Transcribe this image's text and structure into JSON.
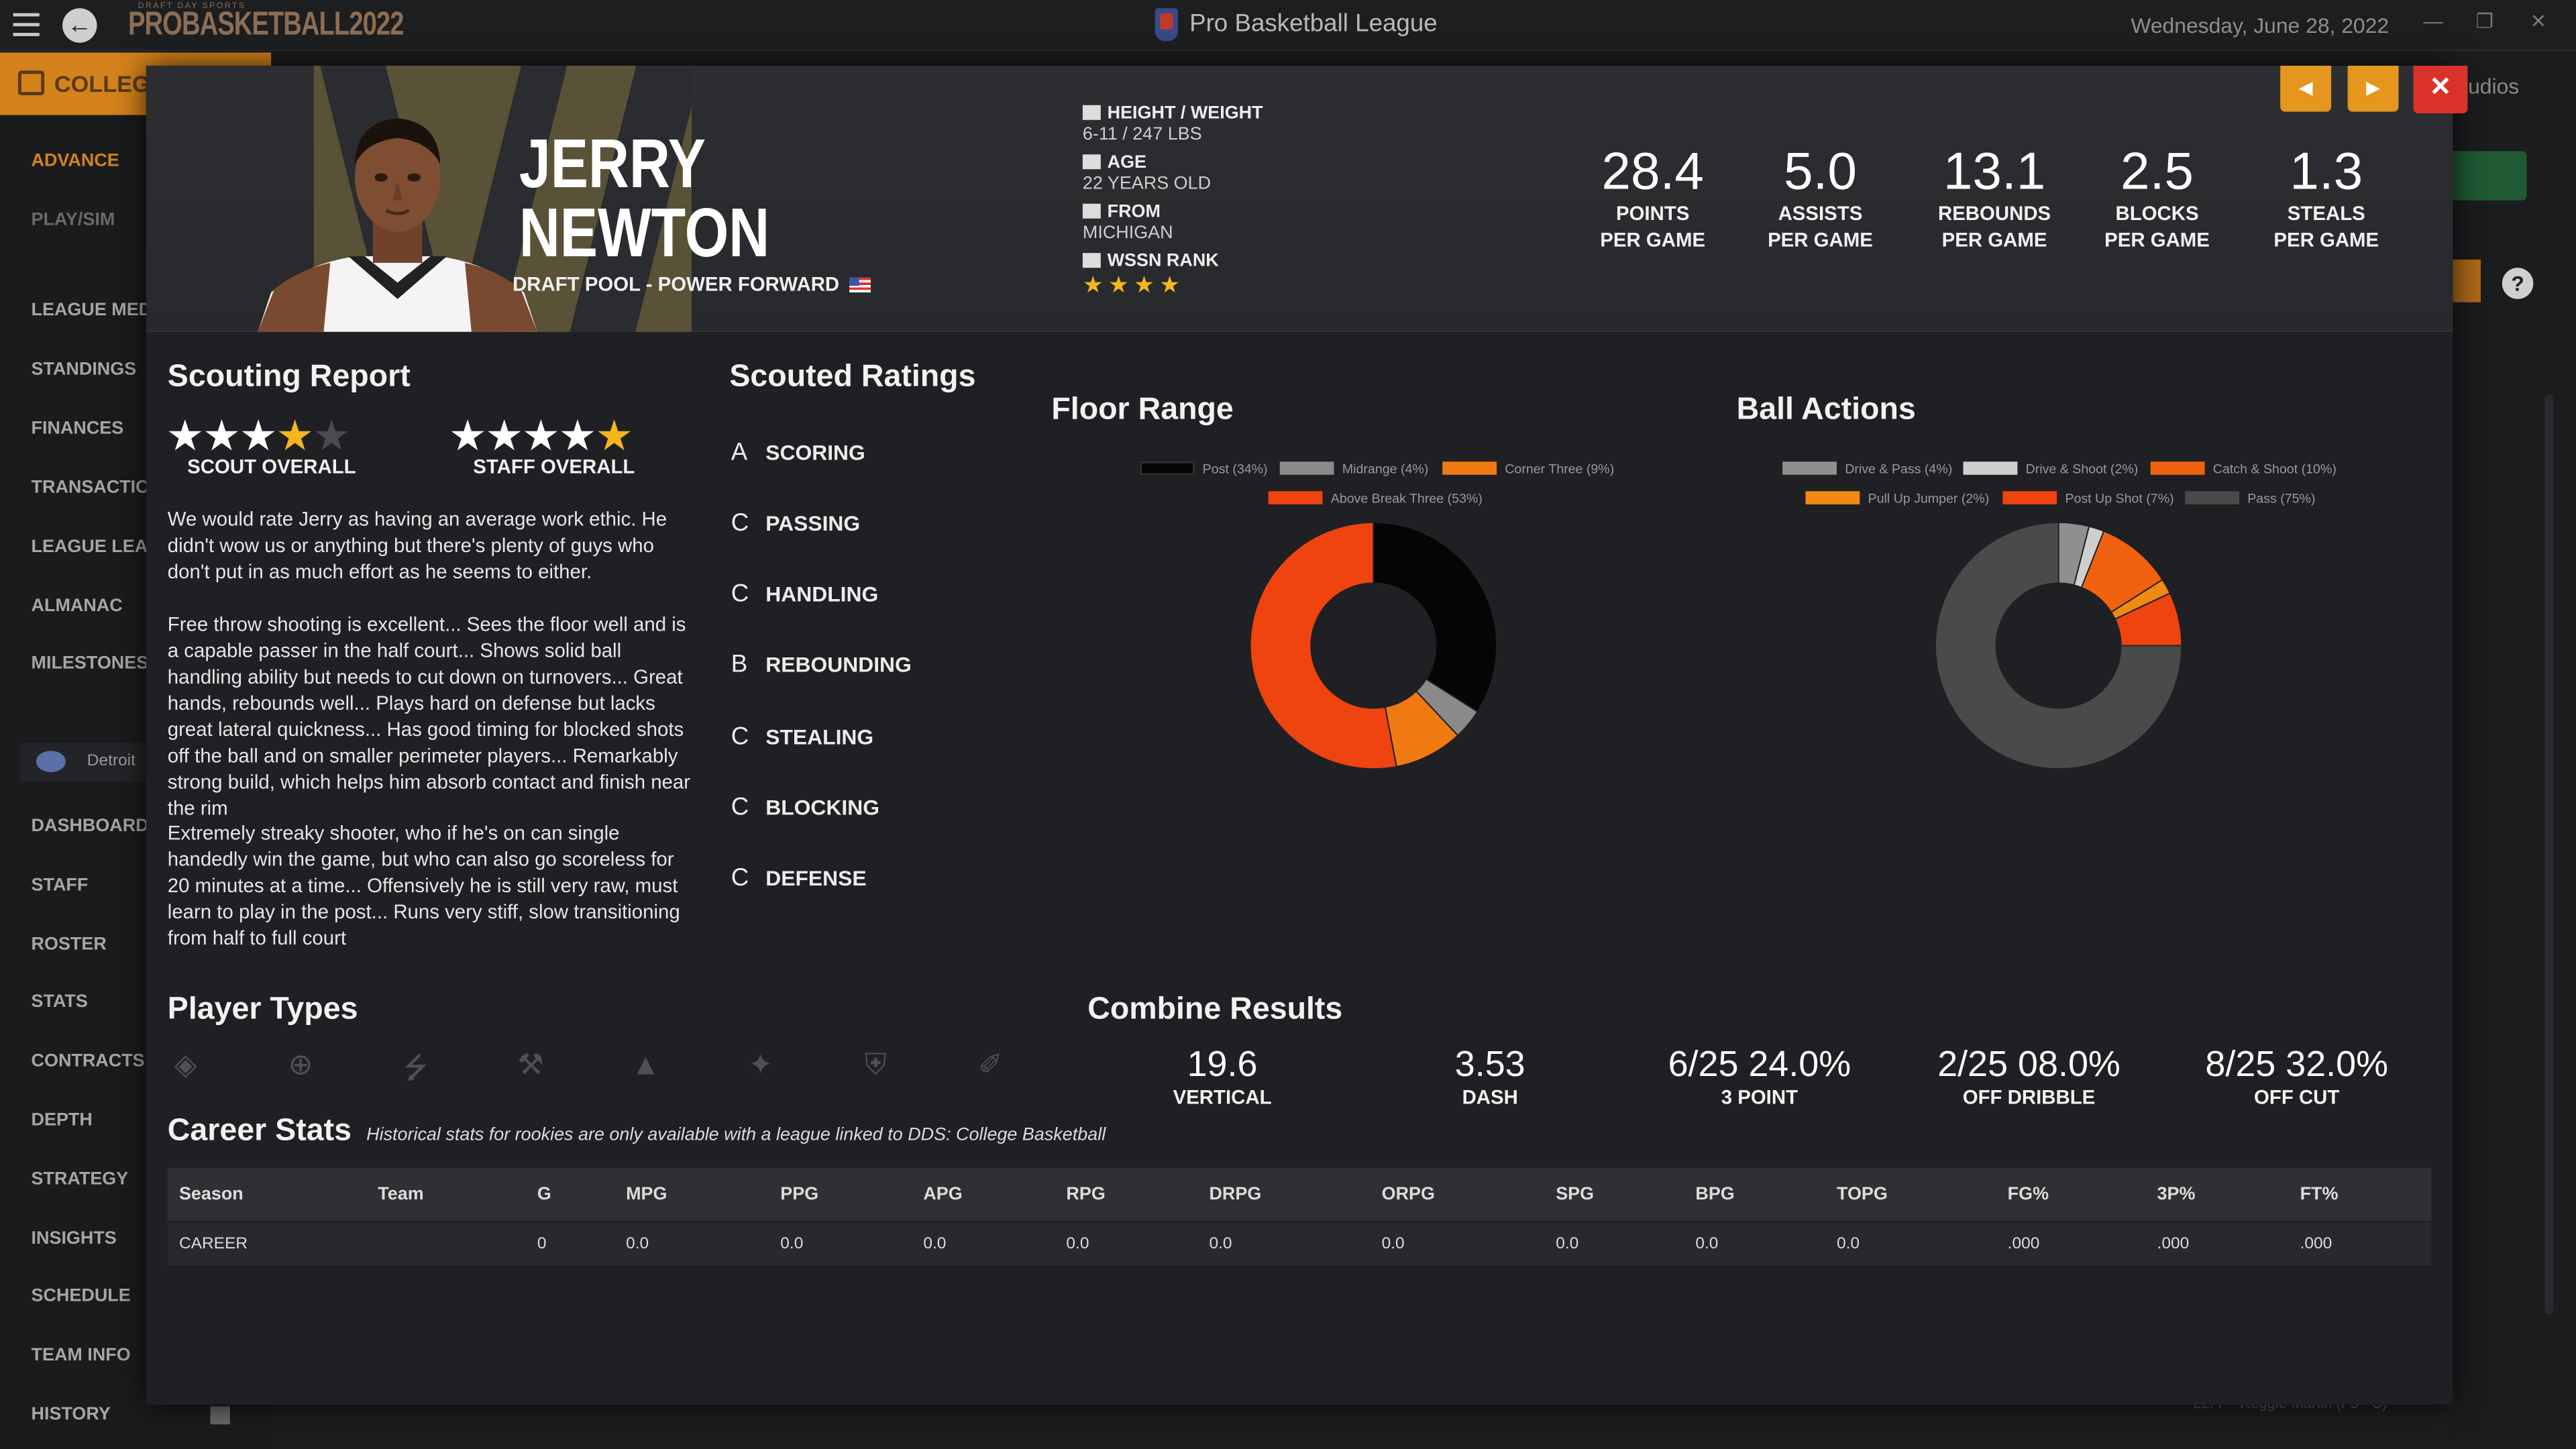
{
  "app": {
    "logo_sub": "DRAFT DAY SPORTS",
    "logo": "PROBASKETBALL2022",
    "league_name": "Pro Basketball League",
    "date": "Wednesday, June 28, 2022"
  },
  "sidebar": {
    "college": "COLLEGE",
    "items": [
      "ADVANCE",
      "PLAY/SIM",
      "LEAGUE MEDIA",
      "STANDINGS",
      "FINANCES",
      "TRANSACTIONS",
      "LEAGUE LEADERS",
      "ALMANAC",
      "MILESTONES"
    ],
    "team": "Detroit",
    "team_items": [
      "DASHBOARD",
      "STAFF",
      "ROSTER",
      "STATS",
      "CONTRACTS",
      "DEPTH",
      "STRATEGY",
      "INSIGHTS",
      "SCHEDULE",
      "TEAM INFO",
      "HISTORY"
    ]
  },
  "background": {
    "studios": "Studios",
    "footer": "22. F - Reggie Martin (F5 - C)"
  },
  "player": {
    "first_name": "JERRY",
    "last_name": "NEWTON",
    "subtitle": "DRAFT POOL - POWER FORWARD",
    "height_weight_label": "HEIGHT / WEIGHT",
    "height_weight": "6-11 / 247 LBS",
    "age_label": "AGE",
    "age": "22 YEARS OLD",
    "from_label": "FROM",
    "from": "MICHIGAN",
    "rank_label": "WSSN RANK",
    "rank_stars": "★★★★"
  },
  "stats": [
    {
      "value": "28.4",
      "l1": "POINTS",
      "l2": "PER GAME"
    },
    {
      "value": "5.0",
      "l1": "ASSISTS",
      "l2": "PER GAME"
    },
    {
      "value": "13.1",
      "l1": "REBOUNDS",
      "l2": "PER GAME"
    },
    {
      "value": "2.5",
      "l1": "BLOCKS",
      "l2": "PER GAME"
    },
    {
      "value": "1.3",
      "l1": "STEALS",
      "l2": "PER GAME"
    }
  ],
  "scouting": {
    "title": "Scouting Report",
    "scout_label": "SCOUT OVERALL",
    "staff_label": "STAFF OVERALL",
    "scout_stars": 3.5,
    "staff_stars": 5,
    "p1": "We would rate Jerry as having an average work ethic. He didn't wow us or anything but there's plenty of guys who don't put in as much effort as he seems to either.",
    "p2": "Free throw shooting is excellent... Sees the floor well and is a capable passer in the half court... Shows solid ball handling ability but needs to cut down on turnovers... Great hands, rebounds well... Plays hard on defense but lacks great lateral quickness... Has good timing for blocked shots off the ball and on smaller perimeter players... Remarkably strong build, which helps him absorb contact and finish near the rim",
    "p3": "Extremely streaky shooter, who if he's on can single handedly win the game, but who can also go scoreless for 20 minutes at a time... Offensively he is still very raw, must learn to play in the post... Runs very stiff, slow transitioning from half to full court"
  },
  "ratings": {
    "title": "Scouted Ratings",
    "items": [
      {
        "grade": "A",
        "label": "SCORING"
      },
      {
        "grade": "C",
        "label": "PASSING"
      },
      {
        "grade": "C",
        "label": "HANDLING"
      },
      {
        "grade": "B",
        "label": "REBOUNDING"
      },
      {
        "grade": "C",
        "label": "STEALING"
      },
      {
        "grade": "C",
        "label": "BLOCKING"
      },
      {
        "grade": "C",
        "label": "DEFENSE"
      }
    ]
  },
  "floor_range": {
    "title": "Floor Range",
    "legend": [
      "Post (34%)",
      "Midrange (4%)",
      "Corner Three (9%)",
      "Above Break Three (53%)"
    ],
    "values": [
      34,
      4,
      9,
      53
    ],
    "colors": [
      "#050505",
      "#8a8a8a",
      "#f07a12",
      "#ef4310"
    ]
  },
  "ball_actions": {
    "title": "Ball Actions",
    "legend": [
      "Drive & Pass (4%)",
      "Drive & Shoot (2%)",
      "Catch & Shoot (10%)",
      "Pull Up Jumper (2%)",
      "Post Up Shot (7%)",
      "Pass (75%)"
    ],
    "values": [
      4,
      2,
      10,
      2,
      7,
      75
    ],
    "colors": [
      "#8f8f8f",
      "#cfcfcf",
      "#f0620f",
      "#f08a12",
      "#ef4310",
      "#4a4a4a"
    ]
  },
  "player_types": {
    "title": "Player Types",
    "icons": [
      "ball-handler-icon",
      "crosshair-icon",
      "lightning-icon",
      "hammer-icon",
      "tower-icon",
      "wand-icon",
      "shield-icon",
      "broom-icon"
    ]
  },
  "combine": {
    "title": "Combine Results",
    "items": [
      {
        "value": "19.6",
        "label": "VERTICAL"
      },
      {
        "value": "3.53",
        "label": "DASH"
      },
      {
        "value": "6/25 24.0%",
        "label": "3 POINT"
      },
      {
        "value": "2/25 08.0%",
        "label": "OFF DRIBBLE"
      },
      {
        "value": "8/25 32.0%",
        "label": "OFF CUT"
      }
    ]
  },
  "career": {
    "title": "Career Stats",
    "note": "Historical stats for rookies are only available with a league linked to DDS: College Basketball",
    "columns": [
      "Season",
      "Team",
      "G",
      "MPG",
      "PPG",
      "APG",
      "RPG",
      "DRPG",
      "ORPG",
      "SPG",
      "BPG",
      "TOPG",
      "FG%",
      "3P%",
      "FT%"
    ],
    "row": [
      "CAREER",
      "",
      "0",
      "0.0",
      "0.0",
      "0.0",
      "0.0",
      "0.0",
      "0.0",
      "0.0",
      "0.0",
      "0.0",
      ".000",
      ".000",
      ".000"
    ]
  }
}
